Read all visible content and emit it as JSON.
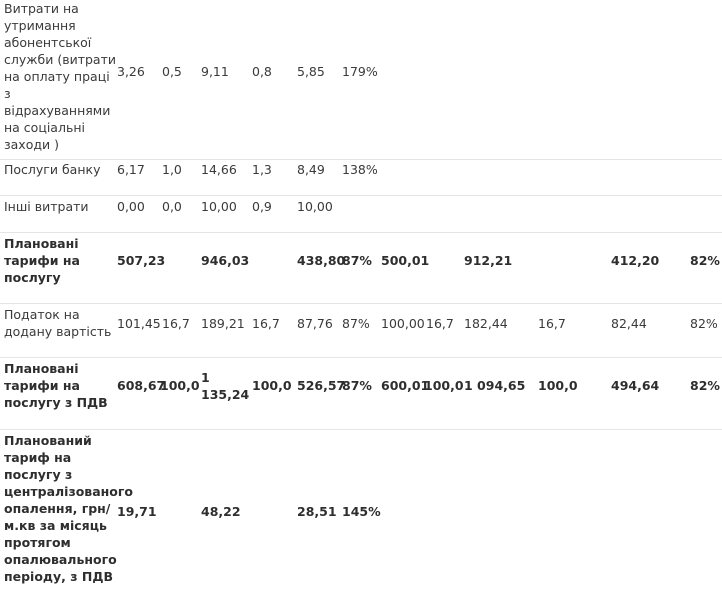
{
  "rows": [
    {
      "label": "Витрати на утримання абонентської служби (витрати на оплату праці з відрахуваннями на соціальні заходи )",
      "bold": false,
      "cells": [
        "3,26",
        "0,5",
        "9,11",
        "0,8",
        "5,85",
        "179%",
        "",
        "",
        "",
        "",
        "",
        ""
      ]
    },
    {
      "label": "Послуги банку",
      "bold": false,
      "cells": [
        "6,17",
        "1,0",
        "14,66",
        "1,3",
        "8,49",
        "138%",
        "",
        "",
        "",
        "",
        "",
        ""
      ]
    },
    {
      "label": "Інші витрати",
      "bold": false,
      "cells": [
        "0,00",
        "0,0",
        "10,00",
        "0,9",
        "10,00",
        "",
        "",
        "",
        "",
        "",
        "",
        ""
      ]
    },
    {
      "label": "Плановані тарифи на послугу",
      "bold": true,
      "cells": [
        "507,23",
        "",
        "946,03",
        "",
        "438,80",
        "87%",
        "500,01",
        "",
        "912,21",
        "",
        "412,20",
        "82%"
      ]
    },
    {
      "label": "Податок на додану вартість",
      "bold": false,
      "cells": [
        "101,45",
        "16,7",
        "189,21",
        "16,7",
        "87,76",
        "87%",
        "100,00",
        "16,7",
        "182,44",
        "16,7",
        "82,44",
        "82%"
      ]
    },
    {
      "label": "Плановані тарифи на послугу з ПДВ",
      "bold": true,
      "cells": [
        "608,67",
        "100,0",
        "1 135,24",
        "100,0",
        "526,57",
        "87%",
        "600,01",
        "100,0",
        "1 094,65",
        "100,0",
        "494,64",
        "82%"
      ]
    },
    {
      "label": "Планований тариф на послугу з централізованого опалення, грн/м.кв за місяць протягом опалювального періоду, з ПДВ",
      "bold": true,
      "cells": [
        "19,71",
        "",
        "48,22",
        "",
        "28,51",
        "145%",
        "",
        "",
        "",
        "",
        "",
        ""
      ]
    }
  ]
}
